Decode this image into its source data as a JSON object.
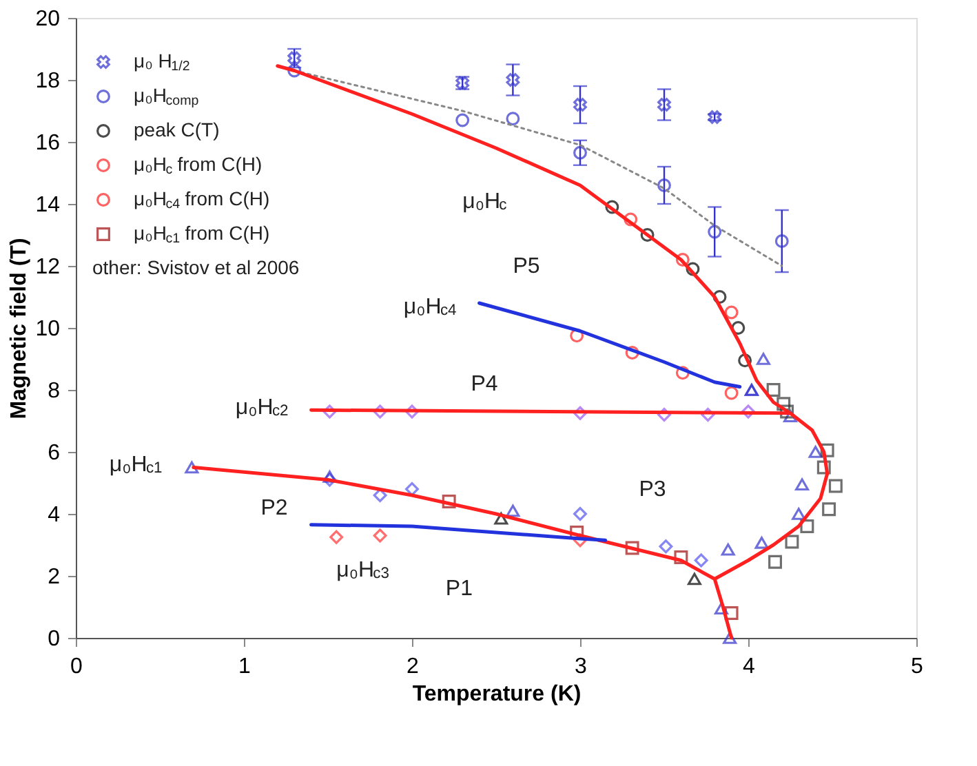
{
  "chart_data": {
    "type": "scatter",
    "xlabel": "Temperature (K)",
    "ylabel": "Magnetic field (T)",
    "xlim": [
      0,
      5
    ],
    "xticks": [
      0,
      1,
      2,
      3,
      4,
      5
    ],
    "ylim": [
      0,
      20
    ],
    "yticks": [
      0,
      2,
      4,
      6,
      8,
      10,
      12,
      14,
      16,
      18,
      20
    ],
    "grid": false,
    "legend": "top left",
    "series": [
      {
        "name": "μ₀ H$_{1/2}$",
        "marker": "cross",
        "color": "#3333cc",
        "x": [
          1.3,
          2.3,
          2.6,
          3.0,
          3.5,
          3.8
        ],
        "values": [
          18.7,
          17.9,
          18.0,
          17.2,
          17.2,
          16.8
        ],
        "errors": [
          0.3,
          0.2,
          0.5,
          0.6,
          0.5,
          0.1
        ]
      },
      {
        "name": "μ₀H$_{comp}$",
        "marker": "circle",
        "color": "#3333cc",
        "x": [
          1.3,
          2.3,
          2.6,
          3.0,
          3.5,
          3.8,
          4.2
        ],
        "values": [
          18.3,
          16.7,
          16.75,
          15.65,
          14.6,
          13.1,
          12.8
        ],
        "errors": [
          null,
          null,
          null,
          0.4,
          0.6,
          0.8,
          1.0
        ]
      },
      {
        "name": "peak C(T)",
        "marker": "circle",
        "color": "#000000",
        "x": [
          3.19,
          3.4,
          3.67,
          3.83,
          3.94,
          3.98
        ],
        "values": [
          13.9,
          13.0,
          11.9,
          11.0,
          10.0,
          8.95
        ]
      },
      {
        "name": "μ₀H$_{c}$ from C(H)",
        "marker": "circle",
        "color": "#ff2020",
        "x": [
          3.3,
          3.61,
          3.9
        ],
        "values": [
          13.5,
          12.2,
          10.5
        ]
      },
      {
        "name": "μ₀H$_{c4}$ from C(H)",
        "marker": "circle",
        "color": "#ff2020",
        "x": [
          2.98,
          3.31,
          3.61,
          3.9
        ],
        "values": [
          9.75,
          9.2,
          8.55,
          7.9
        ]
      },
      {
        "name": "μ₀H$_{c1}$ from C(H)",
        "marker": "square",
        "color": "#a01010",
        "x": [
          2.22,
          2.98,
          3.31,
          3.6,
          3.9
        ],
        "values": [
          4.4,
          3.4,
          2.9,
          2.6,
          0.8
        ]
      },
      {
        "marker": "diamond",
        "color": "#9955ee",
        "x": [
          1.51,
          1.81,
          2.0,
          3.0,
          3.5,
          3.76,
          4.0
        ],
        "values": [
          7.3,
          7.3,
          7.3,
          7.25,
          7.2,
          7.2,
          7.3
        ]
      },
      {
        "marker": "diamond",
        "color": "#5555ee",
        "x": [
          1.51,
          1.81,
          2.0,
          3.0,
          3.51,
          3.72
        ],
        "values": [
          5.1,
          4.6,
          4.8,
          4.0,
          2.95,
          2.5
        ]
      },
      {
        "marker": "diamond",
        "color": "#ff3333",
        "x": [
          1.55,
          1.81,
          3.0
        ],
        "values": [
          3.25,
          3.3,
          3.15
        ]
      },
      {
        "marker": "triangle",
        "color": "#3333cc",
        "x": [
          0.69,
          1.51,
          2.6,
          3.84,
          3.88,
          3.89,
          4.02,
          4.02,
          4.08,
          4.09,
          4.25,
          4.3,
          4.32,
          4.4
        ],
        "values": [
          5.5,
          5.2,
          4.1,
          0.95,
          2.85,
          0.0,
          8.0,
          8.0,
          3.07,
          9.0,
          7.15,
          4.0,
          4.95,
          6.0
        ]
      },
      {
        "marker": "square",
        "color": "#333333",
        "x": [
          4.15,
          4.21,
          4.23,
          4.47,
          4.45,
          4.52,
          4.48,
          4.35,
          4.26,
          4.16
        ],
        "values": [
          8.0,
          7.55,
          7.3,
          6.05,
          5.5,
          4.9,
          4.15,
          3.6,
          3.1,
          2.45
        ]
      },
      {
        "marker": "triangle",
        "color": "#000000",
        "x": [
          2.53,
          3.68
        ],
        "values": [
          3.85,
          1.9
        ]
      },
      {
        "type": "line",
        "color": "#888888",
        "line_style": "dotted",
        "x": [
          1.3,
          2.3,
          3.0,
          3.5,
          3.8,
          4.2
        ],
        "values": [
          18.3,
          17.0,
          15.9,
          14.5,
          13.3,
          12.0
        ]
      },
      {
        "type": "line",
        "color": "#ff2020",
        "line_style": "solid",
        "x": [
          1.2,
          1.3,
          2.0,
          2.5,
          3.0,
          3.3,
          3.6,
          3.8,
          3.95,
          4.05,
          4.15,
          4.25,
          4.38,
          4.45,
          4.47,
          4.43,
          4.3,
          4.15,
          4.0,
          3.8
        ],
        "values": [
          18.45,
          18.3,
          16.9,
          15.8,
          14.6,
          13.4,
          12.2,
          11.0,
          9.5,
          8.3,
          7.6,
          7.25,
          6.7,
          6.0,
          5.3,
          4.5,
          3.6,
          3.0,
          2.5,
          1.9
        ]
      },
      {
        "type": "line",
        "color": "#ff2020",
        "line_style": "solid",
        "x": [
          0.7,
          1.5,
          2.0,
          2.5,
          3.0,
          3.3,
          3.6,
          3.8,
          3.85,
          3.9
        ],
        "values": [
          5.5,
          5.1,
          4.6,
          4.0,
          3.3,
          2.9,
          2.5,
          1.9,
          1.0,
          0.0
        ]
      },
      {
        "type": "line",
        "color": "#ff2020",
        "line_style": "solid",
        "x": [
          1.4,
          4.25
        ],
        "values": [
          7.35,
          7.25
        ]
      },
      {
        "type": "line",
        "color": "#2233dd",
        "line_style": "solid",
        "x": [
          2.4,
          3.0,
          3.5,
          3.8,
          3.95
        ],
        "values": [
          10.8,
          9.9,
          8.9,
          8.25,
          8.1
        ]
      },
      {
        "type": "line",
        "color": "#2233dd",
        "line_style": "solid",
        "x": [
          1.4,
          2.0,
          2.5,
          3.0,
          3.15
        ],
        "values": [
          3.65,
          3.6,
          3.4,
          3.2,
          3.15
        ]
      }
    ],
    "annotations": [
      "other: Svistov et al 2006",
      "μ₀H$_{c}$",
      "μ₀H$_{c4}$",
      "μ₀H$_{c2}$",
      "μ₀H$_{c1}$",
      "μ₀H$_{c3}$",
      "P1",
      "P2",
      "P3",
      "P4",
      "P5"
    ]
  }
}
